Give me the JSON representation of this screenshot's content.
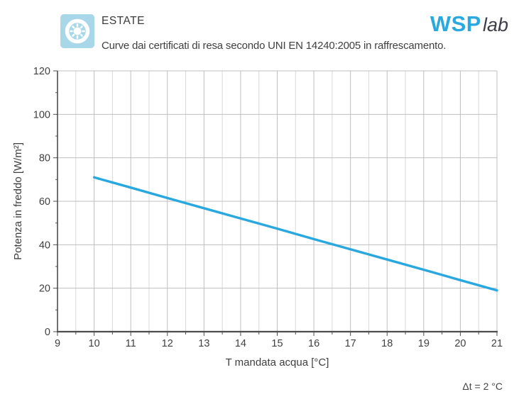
{
  "header": {
    "title": "ESTATE",
    "subtitle": "Curve dai certificati di resa secondo UNI EN 14240:2005 in raffrescamento.",
    "icon": "sun-icon",
    "logo": {
      "primary": "WSP",
      "secondary": "lab"
    }
  },
  "chart_data": {
    "type": "line",
    "title": "",
    "xlabel": "T mandata acqua [°C]",
    "ylabel": "Potenza in freddo [W/m²]",
    "xlim": [
      9,
      21
    ],
    "ylim": [
      0,
      120
    ],
    "x_ticks": [
      9,
      10,
      11,
      12,
      13,
      14,
      15,
      16,
      17,
      18,
      19,
      20,
      21
    ],
    "y_ticks": [
      0,
      20,
      40,
      60,
      80,
      100,
      120
    ],
    "x_minor_step": 0.5,
    "grid": true,
    "legend": "none",
    "series": [
      {
        "color": "#29a8e0",
        "x": [
          10,
          11,
          12,
          13,
          14,
          15,
          16,
          17,
          18,
          19,
          20,
          21
        ],
        "y": [
          71,
          66.3,
          61.5,
          56.8,
          52.1,
          47.4,
          42.6,
          37.9,
          33.2,
          28.5,
          23.7,
          19
        ]
      }
    ],
    "annotation": "Δt = 2 °C"
  },
  "colors": {
    "accent_line": "#29a8e0",
    "logo_blue": "#2aa9e1",
    "icon_bg": "#a8d7e9",
    "text": "#3f3f3f",
    "axis": "#4d4d4d",
    "grid_major": "#bfbfbf",
    "grid_minor": "#d8d8d8"
  }
}
